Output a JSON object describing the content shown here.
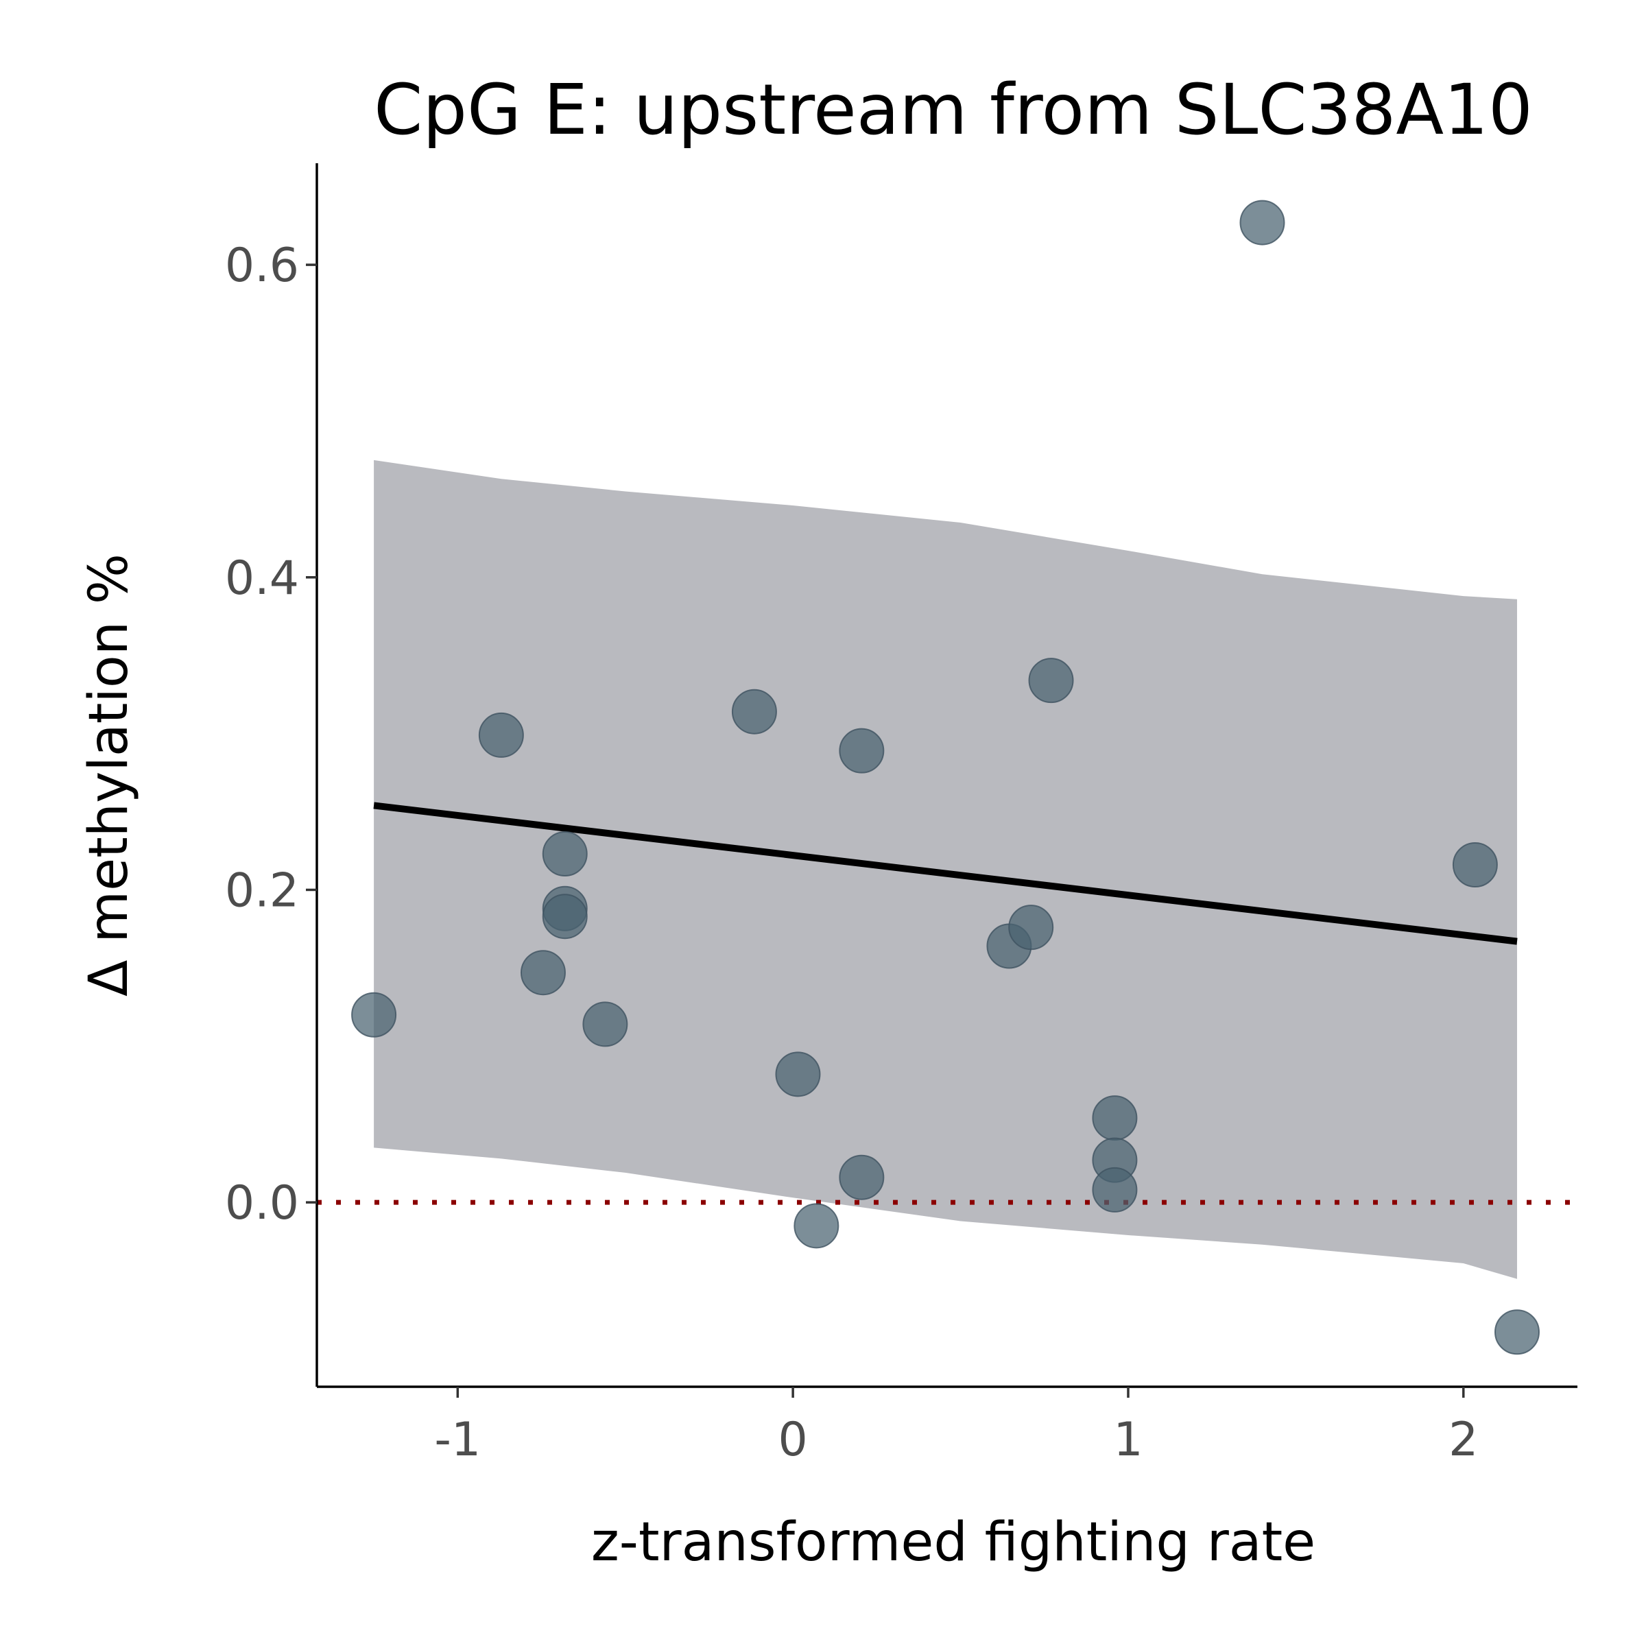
{
  "chart_data": {
    "type": "scatter",
    "title": "CpG E: upstream from SLC38A10",
    "xlabel": "z-transformed fighting rate",
    "ylabel": "Δ methylation %",
    "xlim": [
      -1.42,
      2.34
    ],
    "ylim": [
      -0.118,
      0.665
    ],
    "x_ticks": [
      -1,
      0,
      1,
      2
    ],
    "x_tick_labels": [
      "-1",
      "0",
      "1",
      "2"
    ],
    "y_ticks": [
      0.0,
      0.2,
      0.4,
      0.6
    ],
    "y_tick_labels": [
      "0.0",
      "0.2",
      "0.4",
      "0.6"
    ],
    "grid": false,
    "legend": "none",
    "points": [
      {
        "x": -1.25,
        "y": 0.12
      },
      {
        "x": -0.87,
        "y": 0.299
      },
      {
        "x": -0.68,
        "y": 0.223
      },
      {
        "x": -0.68,
        "y": 0.188
      },
      {
        "x": -0.68,
        "y": 0.183
      },
      {
        "x": -0.745,
        "y": 0.147
      },
      {
        "x": -0.56,
        "y": 0.114
      },
      {
        "x": -0.115,
        "y": 0.314
      },
      {
        "x": 0.015,
        "y": 0.082
      },
      {
        "x": 0.07,
        "y": -0.015
      },
      {
        "x": 0.205,
        "y": 0.289
      },
      {
        "x": 0.205,
        "y": 0.016
      },
      {
        "x": 0.645,
        "y": 0.164
      },
      {
        "x": 0.71,
        "y": 0.176
      },
      {
        "x": 0.77,
        "y": 0.334
      },
      {
        "x": 0.96,
        "y": 0.054
      },
      {
        "x": 0.96,
        "y": 0.027
      },
      {
        "x": 0.96,
        "y": 0.008
      },
      {
        "x": 1.4,
        "y": 0.627
      },
      {
        "x": 2.035,
        "y": 0.216
      },
      {
        "x": 2.16,
        "y": -0.083
      }
    ],
    "fit_line": {
      "x": [
        -1.25,
        2.16
      ],
      "y": [
        0.254,
        0.167
      ]
    },
    "confidence_band": {
      "x": [
        -1.25,
        -0.87,
        -0.5,
        0.0,
        0.5,
        1.0,
        1.4,
        2.0,
        2.16
      ],
      "upper": [
        0.475,
        0.463,
        0.455,
        0.446,
        0.435,
        0.417,
        0.402,
        0.388,
        0.386
      ],
      "lower": [
        0.035,
        0.028,
        0.019,
        0.003,
        -0.012,
        -0.021,
        -0.027,
        -0.039,
        -0.049
      ]
    },
    "reference_line": {
      "y": 0.0,
      "style": "dotted",
      "color": "#8b0000"
    },
    "colors": {
      "points": "#4a6270",
      "band": "#b9babf",
      "fit_line": "#000000",
      "axis": "#000000"
    }
  }
}
